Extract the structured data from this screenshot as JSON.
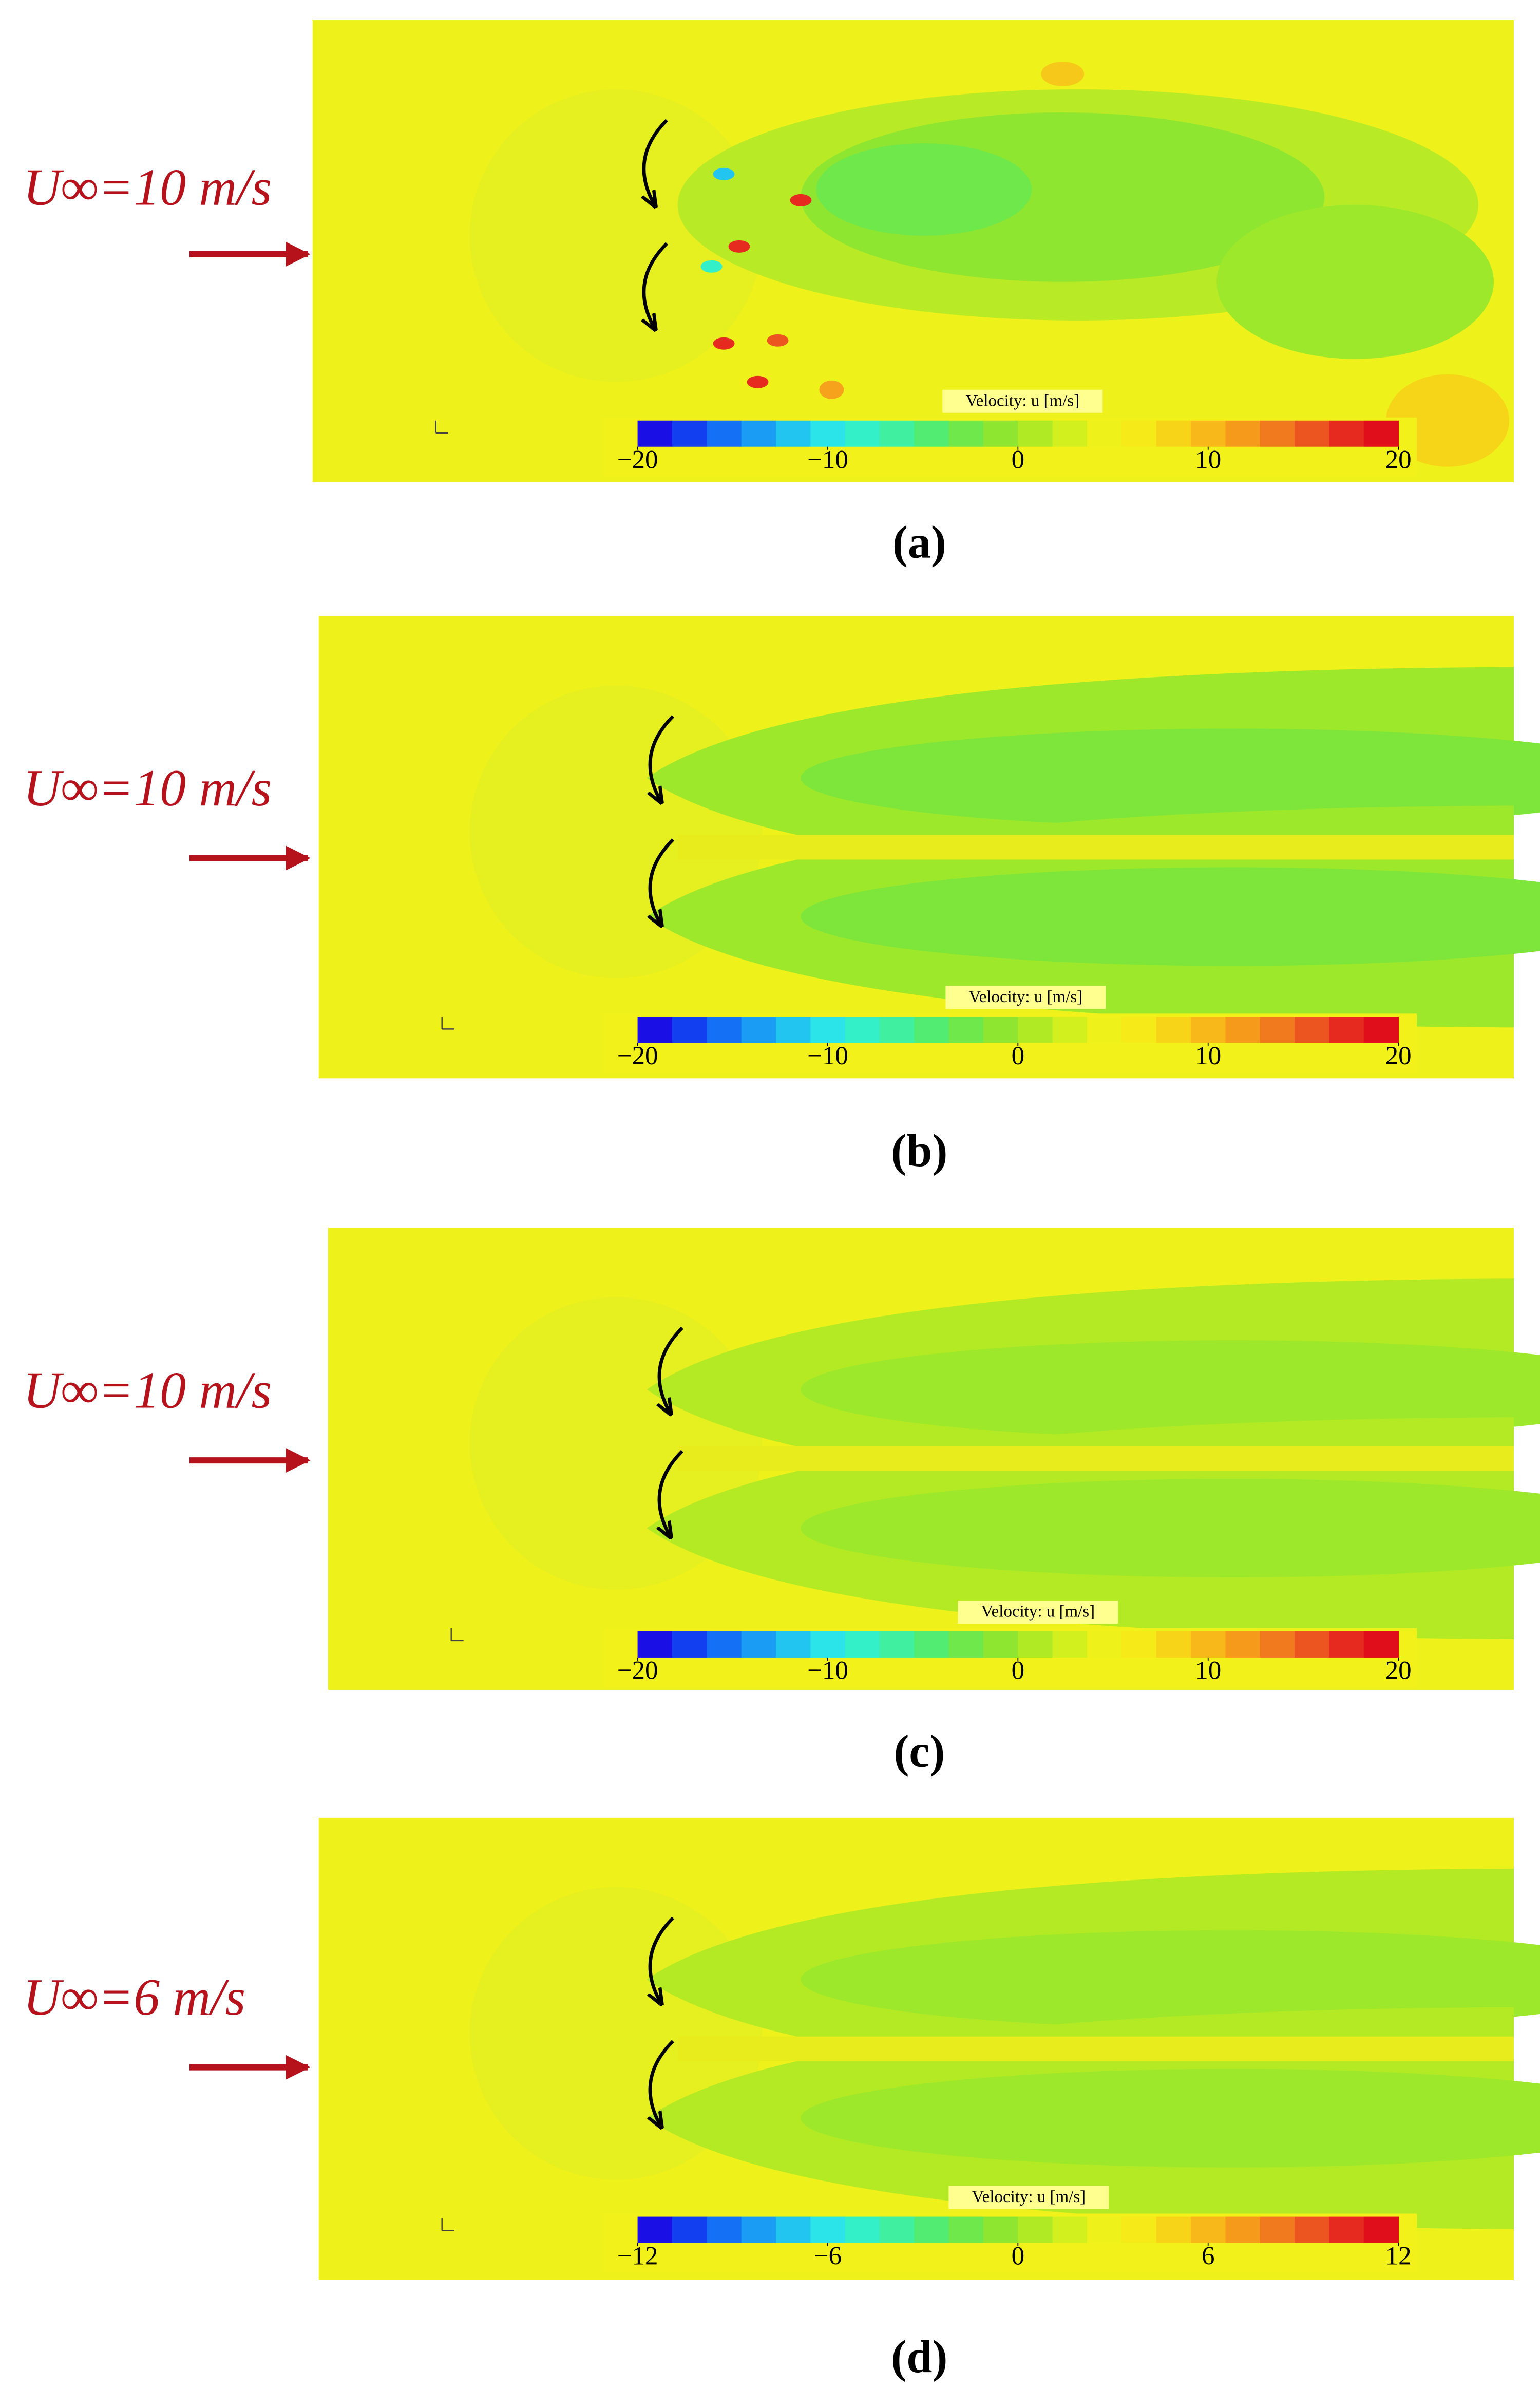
{
  "colormap": [
    "#1a10e6",
    "#1240f0",
    "#1470f4",
    "#1a9cf4",
    "#22c4f0",
    "#2ae4ea",
    "#34f0c8",
    "#40f0a0",
    "#52ec72",
    "#6ee84a",
    "#8ee630",
    "#b0ea24",
    "#d2f01e",
    "#eef21a",
    "#f6ea18",
    "#f8d418",
    "#f8b81a",
    "#f69a1c",
    "#f27a1e",
    "#ec5420",
    "#e62a20",
    "#e00e1a"
  ],
  "panels": [
    {
      "label": "(a)",
      "inflow": "U∞=10 m/s",
      "colorbar": {
        "title": "Velocity: u [m/s]",
        "lim": [
          -20,
          20
        ],
        "ticks": [
          {
            "value": -20,
            "label": "−20"
          },
          {
            "value": -10,
            "label": "−10"
          },
          0,
          10,
          20
        ]
      }
    },
    {
      "label": "(b)",
      "inflow": "U∞=10 m/s",
      "colorbar": {
        "title": "Velocity: u [m/s]",
        "lim": [
          -20,
          20
        ],
        "ticks": [
          {
            "value": -20,
            "label": "−20"
          },
          {
            "value": -10,
            "label": "−10"
          },
          0,
          10,
          20
        ]
      }
    },
    {
      "label": "(c)",
      "inflow": "U∞=10 m/s",
      "colorbar": {
        "title": "Velocity: u [m/s]",
        "lim": [
          -20,
          20
        ],
        "ticks": [
          {
            "value": -20,
            "label": "−20"
          },
          {
            "value": -10,
            "label": "−10"
          },
          0,
          10,
          20
        ]
      }
    },
    {
      "label": "(d)",
      "inflow": "U∞=6 m/s",
      "colorbar": {
        "title": "Velocity: u [m/s]",
        "lim": [
          -12,
          12
        ],
        "ticks": [
          {
            "value": -12,
            "label": "−12"
          },
          {
            "value": -6,
            "label": "−6"
          },
          0,
          6,
          12
        ]
      }
    }
  ]
}
